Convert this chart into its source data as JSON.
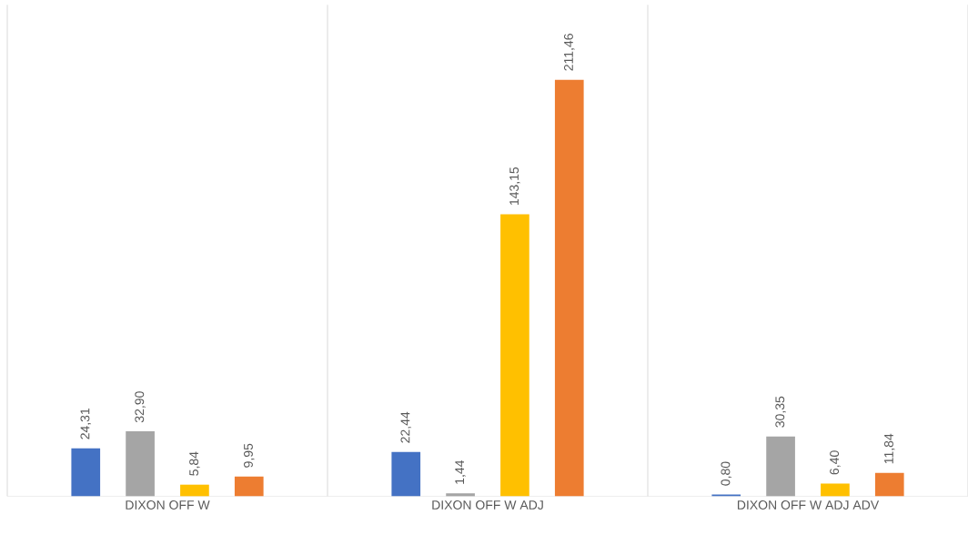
{
  "chart_data": {
    "type": "bar",
    "categories": [
      "DIXON OFF W",
      "DIXON OFF W ADJ",
      "DIXON OFF W ADJ ADV"
    ],
    "series": [
      {
        "color": "#4472c4",
        "values": [
          24.31,
          22.44,
          0.8
        ],
        "value_labels": [
          "24,31",
          "22,44",
          "0,80"
        ]
      },
      {
        "color": "#a5a5a5",
        "values": [
          32.9,
          1.44,
          30.35
        ],
        "value_labels": [
          "32,90",
          "1,44",
          "30,35"
        ]
      },
      {
        "color": "#ffc000",
        "values": [
          5.84,
          143.15,
          6.4
        ],
        "value_labels": [
          "5,84",
          "143,15",
          "6,40"
        ]
      },
      {
        "color": "#ed7d31",
        "values": [
          9.95,
          211.46,
          11.84
        ],
        "value_labels": [
          "9,95",
          "211,46",
          "11,84"
        ]
      }
    ]
  }
}
